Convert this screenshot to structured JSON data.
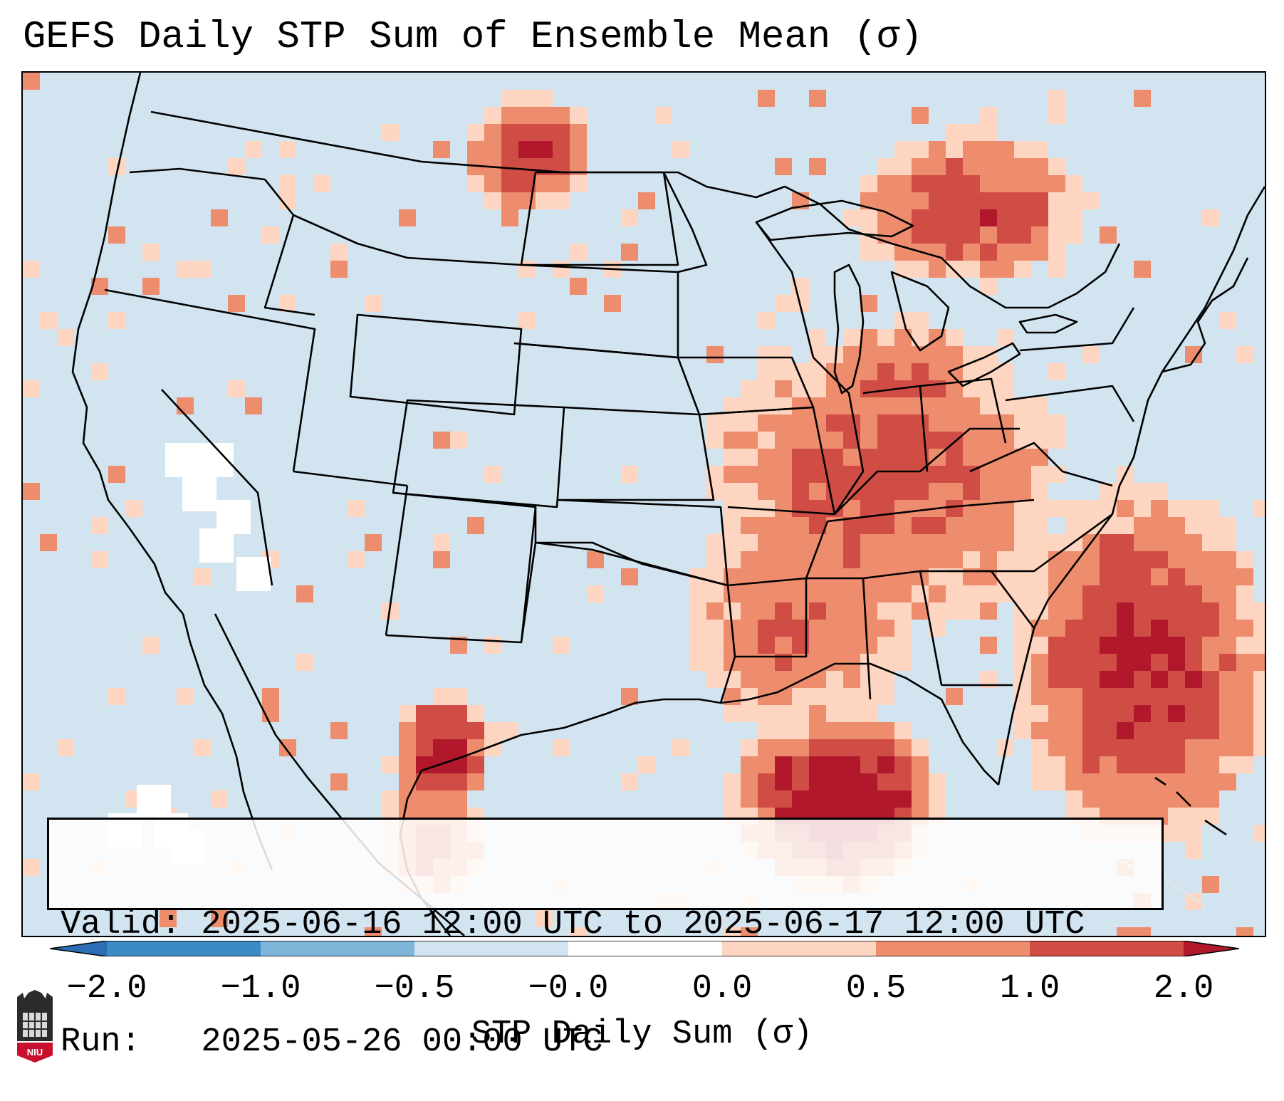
{
  "title": "GEFS Daily STP Sum of Ensemble Mean (σ)",
  "info": {
    "valid_line": "Valid: 2025-06-16 12:00 UTC to 2025-06-17 12:00 UTC",
    "run_line": "Run:   2025-05-26 00:00 UTC"
  },
  "colorbar": {
    "label": "STP Daily Sum (σ)",
    "ticks": [
      "−2.0",
      "−1.0",
      "−0.5",
      "−0.0",
      "0.0",
      "0.5",
      "1.0",
      "2.0"
    ],
    "colors": {
      "under": "#2a6fb5",
      "bin1": "#3d8bc5",
      "bin2": "#7eb6d9",
      "bin3": "#d2e4f0",
      "bin4": "#ffffff",
      "bin5": "#fdd5c0",
      "bin6": "#ee8c6e",
      "bin7": "#cf4d45",
      "over": "#b2182b"
    }
  },
  "map": {
    "background_color": "#d2e4f0",
    "fill_colors": {
      "low": "#fdd5c0",
      "mid": "#ee8c6e",
      "high": "#cf4d45",
      "max": "#b2182b",
      "white": "#ffffff"
    }
  },
  "logo": {
    "text": "NIU",
    "color": "#c8102e"
  }
}
